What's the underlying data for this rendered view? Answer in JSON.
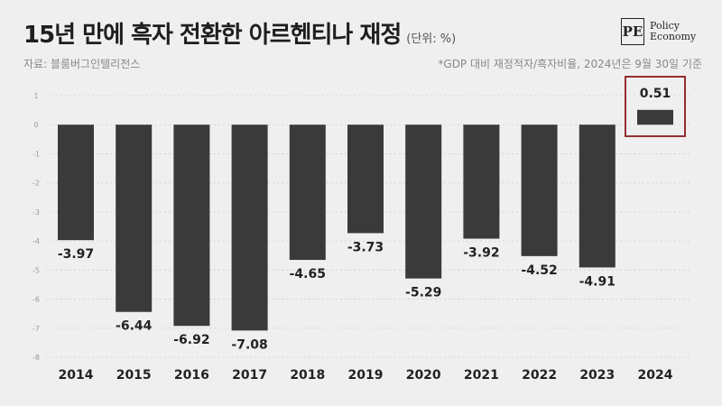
{
  "header": {
    "title": "15년 만에 흑자 전환한 아르헨티나 재정",
    "unit": "(단위: %)",
    "source": "자료: 블룸버그인텔리전스",
    "note": "*GDP 대비 재정적자/흑자비율, 2024년은 9월 30일 기준"
  },
  "logo": {
    "mark": "PE",
    "line1": "Policy",
    "line2": "Economy"
  },
  "chart_data": {
    "type": "bar",
    "categories": [
      "2014",
      "2015",
      "2016",
      "2017",
      "2018",
      "2019",
      "2020",
      "2021",
      "2022",
      "2023",
      "2024"
    ],
    "values": [
      -3.97,
      -6.44,
      -6.92,
      -7.08,
      -4.65,
      -3.73,
      -5.29,
      -3.92,
      -4.52,
      -4.91,
      0.51
    ],
    "value_labels": [
      "-3.97",
      "-6.44",
      "-6.92",
      "-7.08",
      "-4.65",
      "-3.73",
      "-5.29",
      "-3.92",
      "-4.52",
      "-4.91",
      "0.51"
    ],
    "ylim": [
      -8,
      1
    ],
    "yticks": [
      1,
      0,
      -1,
      -2,
      -3,
      -4,
      -5,
      -6,
      -7,
      -8
    ],
    "ytick_labels": [
      "1",
      "0",
      "-1",
      "-2",
      "-3",
      "-4",
      "-5",
      "-6",
      "-7",
      "-8"
    ],
    "grid": true,
    "bar_color": "#3a3a3a",
    "highlight": {
      "category": "2024",
      "color": "#8b1a1a"
    }
  }
}
